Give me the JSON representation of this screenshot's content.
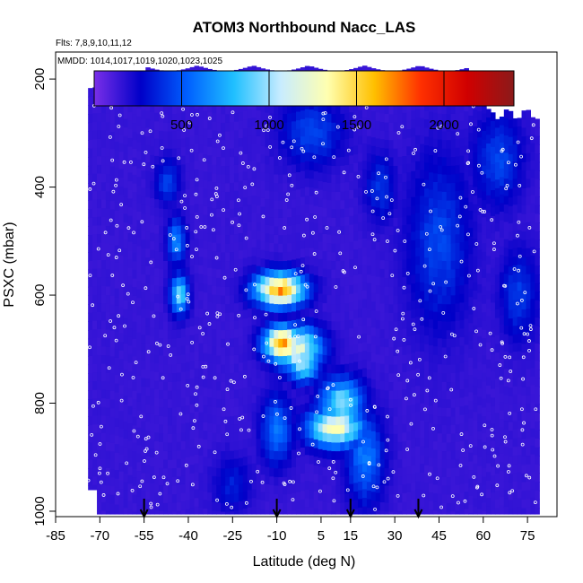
{
  "chart_data": {
    "type": "heatmap",
    "title": "ATOM3 Northbound Nacc_LAS",
    "flights_label": "Flts: 7,8,9,10,11,12",
    "dates_label": "MMDD: 1014,1017,1019,1020,1023,1025",
    "xlabel": "Latitude (deg N)",
    "ylabel": "PSXC (mbar)",
    "xlim": [
      -85,
      85
    ],
    "ylim": [
      1010,
      150
    ],
    "x_ticks": [
      -85,
      -70,
      -55,
      -40,
      -25,
      -10,
      5,
      15,
      30,
      45,
      60,
      75
    ],
    "y_ticks": [
      200,
      400,
      600,
      800,
      1000
    ],
    "colorbar": {
      "min": 0,
      "max": 2400,
      "ticks": [
        500,
        1000,
        1500,
        2000
      ],
      "colors": [
        "#7a2fe8",
        "#0000c8",
        "#0060ff",
        "#20c0ff",
        "#c8ecff",
        "#ffffb0",
        "#ffc000",
        "#ff3000",
        "#d00000",
        "#8b1a1a"
      ]
    },
    "grid": false,
    "arrows_latitude": [
      -55,
      -10,
      15,
      38
    ],
    "data_coverage": {
      "lat_range": [
        -74,
        78
      ],
      "pressure_range": [
        175,
        1005
      ],
      "background_value": 150
    },
    "enhancements": [
      {
        "lat": -9,
        "p": 590,
        "dlat": 8,
        "dp": 30,
        "value": 1650
      },
      {
        "lat": -8,
        "p": 690,
        "dlat": 6,
        "dp": 30,
        "value": 1700
      },
      {
        "lat": -3,
        "p": 700,
        "dlat": 8,
        "dp": 40,
        "value": 1200
      },
      {
        "lat": -1,
        "p": 730,
        "dlat": 5,
        "dp": 30,
        "value": 1000
      },
      {
        "lat": 10,
        "p": 845,
        "dlat": 9,
        "dp": 35,
        "value": 1300
      },
      {
        "lat": 12,
        "p": 800,
        "dlat": 7,
        "dp": 45,
        "value": 950
      },
      {
        "lat": -43,
        "p": 600,
        "dlat": 3,
        "dp": 35,
        "value": 900
      },
      {
        "lat": -44,
        "p": 500,
        "dlat": 3,
        "dp": 40,
        "value": 650
      },
      {
        "lat": -47,
        "p": 390,
        "dlat": 4,
        "dp": 40,
        "value": 450
      },
      {
        "lat": -10,
        "p": 850,
        "dlat": 5,
        "dp": 60,
        "value": 600
      },
      {
        "lat": 20,
        "p": 900,
        "dlat": 6,
        "dp": 80,
        "value": 600
      },
      {
        "lat": 2,
        "p": 300,
        "dlat": 10,
        "dp": 60,
        "value": 450
      },
      {
        "lat": 45,
        "p": 500,
        "dlat": 10,
        "dp": 150,
        "value": 450
      },
      {
        "lat": 65,
        "p": 350,
        "dlat": 8,
        "dp": 80,
        "value": 450
      },
      {
        "lat": 72,
        "p": 600,
        "dlat": 6,
        "dp": 80,
        "value": 420
      },
      {
        "lat": 25,
        "p": 400,
        "dlat": 5,
        "dp": 60,
        "value": 400
      },
      {
        "lat": -25,
        "p": 950,
        "dlat": 6,
        "dp": 50,
        "value": 350
      }
    ]
  }
}
